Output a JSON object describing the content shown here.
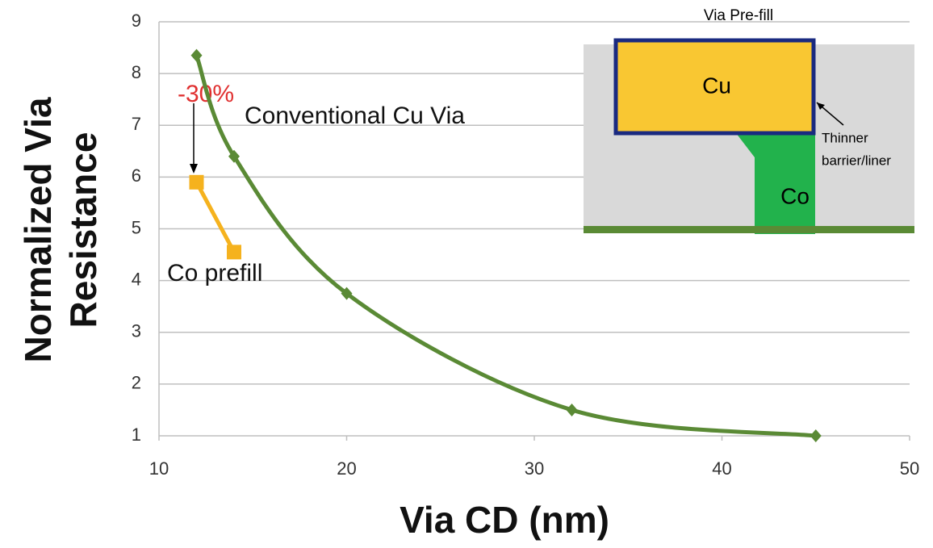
{
  "chart_data": {
    "type": "line",
    "xlabel": "Via CD (nm)",
    "ylabel": "Normalized Via Resistance",
    "xlim": [
      10,
      50
    ],
    "xticks": [
      10,
      20,
      30,
      40,
      50
    ],
    "ylim": [
      1,
      9
    ],
    "yticks": [
      1,
      2,
      3,
      4,
      5,
      6,
      7,
      8,
      9
    ],
    "grid": true,
    "series": [
      {
        "name": "Conventional Cu Via",
        "color": "#5a8a35",
        "x": [
          12,
          14,
          20,
          32,
          45
        ],
        "values": [
          8.35,
          6.4,
          3.75,
          1.5,
          1.0
        ]
      },
      {
        "name": "Co prefill",
        "color": "#f5b21e",
        "x": [
          12,
          14
        ],
        "values": [
          5.9,
          4.55
        ]
      }
    ],
    "annotations": [
      "-30%"
    ],
    "inset": {
      "title": "Via Pre-fill",
      "labels": [
        "Cu",
        "Co",
        "Thinner",
        "barrier/liner"
      ]
    }
  }
}
